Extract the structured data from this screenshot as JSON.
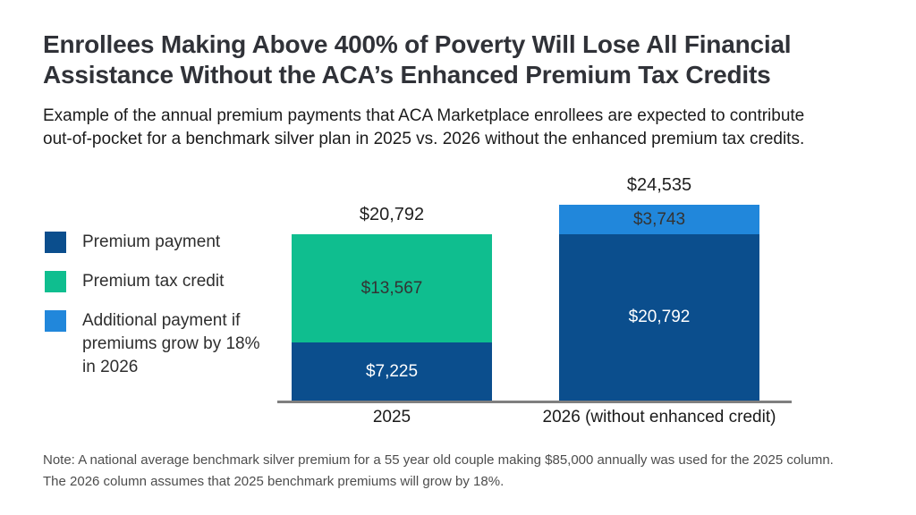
{
  "chart_data": {
    "type": "bar",
    "stacked": true,
    "title": "Enrollees Making Above 400% of Poverty Will Lose All Financial Assistance Without the ACA’s Enhanced Premium Tax Credits",
    "title_lines": [
      "Enrollees Making Above 400% of Poverty Will Lose All Financial",
      "Assistance Without the ACA’s Enhanced Premium Tax Credits"
    ],
    "subtitle": "Example of the annual premium payments that ACA Marketplace enrollees are expected to contribute out-of-pocket for a benchmark silver plan in 2025 vs. 2026 without the enhanced premium tax credits.",
    "subtitle_lines": [
      "Example of the annual premium payments that ACA Marketplace enrollees are expected to contribute",
      "out-of-pocket for a benchmark silver plan in 2025 vs. 2026 without the enhanced premium tax credits."
    ],
    "note": "Note: A national average benchmark silver premium for a 55 year old couple making $85,000 annually was used for the 2025 column. The 2026 column assumes that 2025 benchmark premiums will grow by 18%.",
    "note_lines": [
      "Note: A national average benchmark silver premium for a 55 year old couple making $85,000 annually was used for the 2025 column.",
      "The 2026 column assumes that 2025 benchmark premiums will grow by 18%."
    ],
    "categories": [
      "2025",
      "2026 (without enhanced credit)"
    ],
    "series": [
      {
        "name": "Premium payment",
        "color": "#0B4E8D",
        "label_color": "#FFFFFF",
        "values": [
          7225,
          20792
        ],
        "value_labels": [
          "$7,225",
          "$20,792"
        ]
      },
      {
        "name": "Premium tax credit",
        "color": "#0FBE8F",
        "label_color": "#333333",
        "values": [
          13567,
          null
        ],
        "value_labels": [
          "$13,567",
          null
        ]
      },
      {
        "name": "Additional payment if premiums grow by 18% in 2026",
        "color": "#2187DB",
        "label_color": "#333333",
        "values": [
          null,
          3743
        ],
        "value_labels": [
          null,
          "$3,743"
        ]
      }
    ],
    "totals": {
      "values": [
        20792,
        24535
      ],
      "labels": [
        "$20,792",
        "$24,535"
      ]
    },
    "ylim": [
      0,
      24535
    ],
    "grid": false,
    "legend_position": "left",
    "axis_color": "#7F7F7F"
  }
}
